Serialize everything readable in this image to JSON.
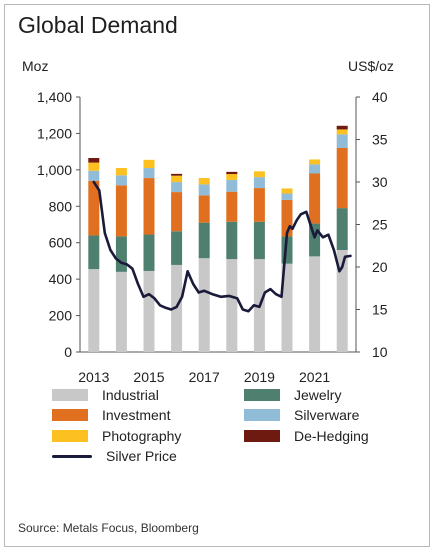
{
  "title": "Global Demand",
  "left_unit": "Moz",
  "right_unit": "US$/oz",
  "source": "Source: Metals Focus, Bloomberg",
  "chart_data": {
    "type": "bar",
    "stacked": true,
    "categories": [
      "2013",
      "2014",
      "2015",
      "2016",
      "2017",
      "2018",
      "2019",
      "2020",
      "2021",
      "2022"
    ],
    "x_tick_labels": [
      "2013",
      "2015",
      "2017",
      "2019",
      "2021"
    ],
    "y_left": {
      "label": "Moz",
      "ticks": [
        "0",
        "200",
        "400",
        "600",
        "800",
        "1,000",
        "1,200",
        "1,400"
      ],
      "lim": [
        0,
        1400
      ]
    },
    "y_right": {
      "label": "US$/oz",
      "ticks": [
        "10",
        "15",
        "20",
        "25",
        "30",
        "35",
        "40"
      ],
      "lim": [
        10,
        40
      ]
    },
    "series": [
      {
        "name": "Industrial",
        "color": "#c8c8c8",
        "values": [
          455,
          440,
          445,
          478,
          515,
          510,
          510,
          485,
          525,
          560
        ]
      },
      {
        "name": "Jewelry",
        "color": "#4f7f6e",
        "values": [
          185,
          195,
          200,
          185,
          195,
          205,
          205,
          150,
          180,
          230
        ]
      },
      {
        "name": "Investment",
        "color": "#e07020",
        "values": [
          300,
          280,
          310,
          215,
          150,
          165,
          185,
          200,
          275,
          330
        ]
      },
      {
        "name": "Silverware",
        "color": "#90bcd8",
        "values": [
          55,
          55,
          55,
          55,
          60,
          65,
          60,
          35,
          50,
          75
        ]
      },
      {
        "name": "Photography",
        "color": "#fcc020",
        "values": [
          45,
          40,
          45,
          35,
          35,
          32,
          32,
          28,
          27,
          27
        ]
      },
      {
        "name": "De-Hedging",
        "color": "#6e1a10",
        "values": [
          25,
          0,
          0,
          10,
          0,
          12,
          0,
          0,
          0,
          20
        ]
      }
    ],
    "line_series": {
      "name": "Silver Price",
      "color": "#1a1a3a",
      "axis": "right",
      "x": [
        2013.0,
        2013.2,
        2013.4,
        2013.6,
        2013.8,
        2014.0,
        2014.2,
        2014.4,
        2014.6,
        2014.8,
        2015.0,
        2015.2,
        2015.4,
        2015.6,
        2015.8,
        2016.0,
        2016.2,
        2016.4,
        2016.6,
        2016.8,
        2017.0,
        2017.3,
        2017.6,
        2017.9,
        2018.2,
        2018.4,
        2018.6,
        2018.8,
        2019.0,
        2019.2,
        2019.4,
        2019.6,
        2019.8,
        2020.0,
        2020.1,
        2020.2,
        2020.35,
        2020.5,
        2020.7,
        2020.9,
        2021.0,
        2021.1,
        2021.3,
        2021.5,
        2021.7,
        2021.9,
        2022.0,
        2022.1,
        2022.3
      ],
      "y": [
        30.0,
        29.0,
        24.0,
        22.0,
        21.0,
        20.5,
        20.3,
        19.8,
        18.0,
        16.5,
        16.8,
        16.3,
        15.5,
        15.2,
        15.0,
        15.3,
        16.5,
        19.5,
        18.0,
        17.0,
        17.2,
        16.8,
        16.5,
        16.6,
        16.3,
        15.0,
        14.8,
        15.5,
        15.3,
        17.0,
        17.4,
        16.8,
        16.5,
        24.0,
        24.8,
        24.5,
        25.5,
        26.2,
        26.5,
        24.5,
        23.5,
        24.3,
        23.5,
        23.8,
        22.0,
        19.5,
        20.0,
        21.2,
        21.3
      ]
    },
    "legend_position": "bottom",
    "grid": false
  }
}
